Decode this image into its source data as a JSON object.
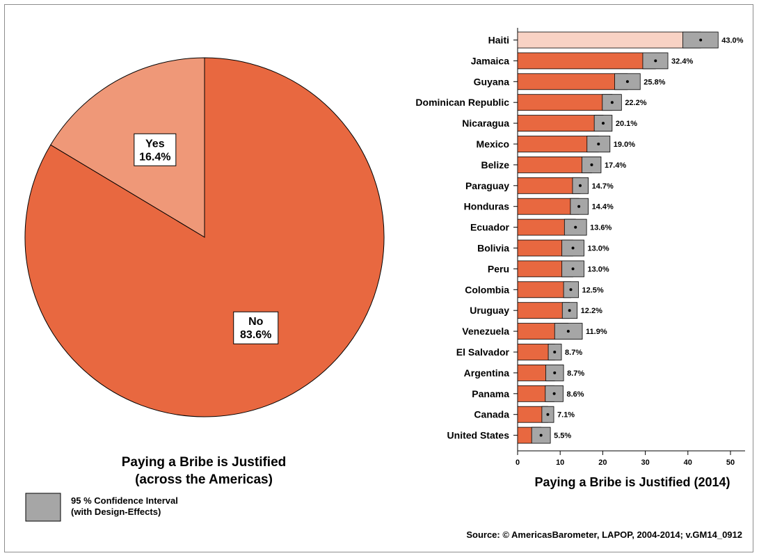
{
  "pie": {
    "title_line1": "Paying a Bribe is Justified",
    "title_line2": "(across the Americas)"
  },
  "legend": {
    "line1": "95 % Confidence Interval",
    "line2": "(with Design-Effects)",
    "swatch_color": "#a6a6a6"
  },
  "bar": {
    "xlabel": "Paying a Bribe is Justified (2014)"
  },
  "source": "Source: © AmericasBarometer, LAPOP, 2004-2014; v.GM14_0912",
  "chart_data": [
    {
      "type": "pie",
      "title": "Paying a Bribe is Justified (across the Americas)",
      "slices": [
        {
          "label": "Yes",
          "value": 16.4,
          "value_label": "16.4%",
          "color": "#ef9878"
        },
        {
          "label": "No",
          "value": 83.6,
          "value_label": "83.6%",
          "color": "#e86840"
        }
      ]
    },
    {
      "type": "bar",
      "orientation": "horizontal",
      "xlabel": "Paying a Bribe is Justified (2014)",
      "xlim": [
        0,
        50
      ],
      "xticks": [
        0,
        10,
        20,
        30,
        40,
        50
      ],
      "bar_color": "#e86840",
      "highlight_color": "#f8d2c4",
      "ci_color": "#a6a6a6",
      "categories": [
        "Haiti",
        "Jamaica",
        "Guyana",
        "Dominican Republic",
        "Nicaragua",
        "Mexico",
        "Belize",
        "Paraguay",
        "Honduras",
        "Ecuador",
        "Bolivia",
        "Peru",
        "Colombia",
        "Uruguay",
        "Venezuela",
        "El Salvador",
        "Argentina",
        "Panama",
        "Canada",
        "United States"
      ],
      "values": [
        43.0,
        32.4,
        25.8,
        22.2,
        20.1,
        19.0,
        17.4,
        14.7,
        14.4,
        13.6,
        13.0,
        13.0,
        12.5,
        12.2,
        11.9,
        8.7,
        8.7,
        8.6,
        7.1,
        5.5
      ],
      "value_labels": [
        "43.0%",
        "32.4%",
        "25.8%",
        "22.2%",
        "20.1%",
        "19.0%",
        "17.4%",
        "14.7%",
        "14.4%",
        "13.6%",
        "13.0%",
        "13.0%",
        "12.5%",
        "12.2%",
        "11.9%",
        "8.7%",
        "8.7%",
        "8.6%",
        "7.1%",
        "5.5%"
      ],
      "ci_low": [
        38.8,
        29.4,
        22.8,
        19.9,
        18.0,
        16.3,
        15.1,
        12.9,
        12.4,
        11.0,
        10.4,
        10.4,
        10.8,
        10.5,
        8.7,
        7.2,
        6.6,
        6.5,
        5.7,
        3.3
      ],
      "ci_high": [
        47.1,
        35.3,
        28.8,
        24.4,
        22.2,
        21.7,
        19.6,
        16.6,
        16.6,
        16.2,
        15.6,
        15.6,
        14.3,
        14.0,
        15.2,
        10.3,
        10.8,
        10.7,
        8.5,
        7.7
      ]
    }
  ]
}
